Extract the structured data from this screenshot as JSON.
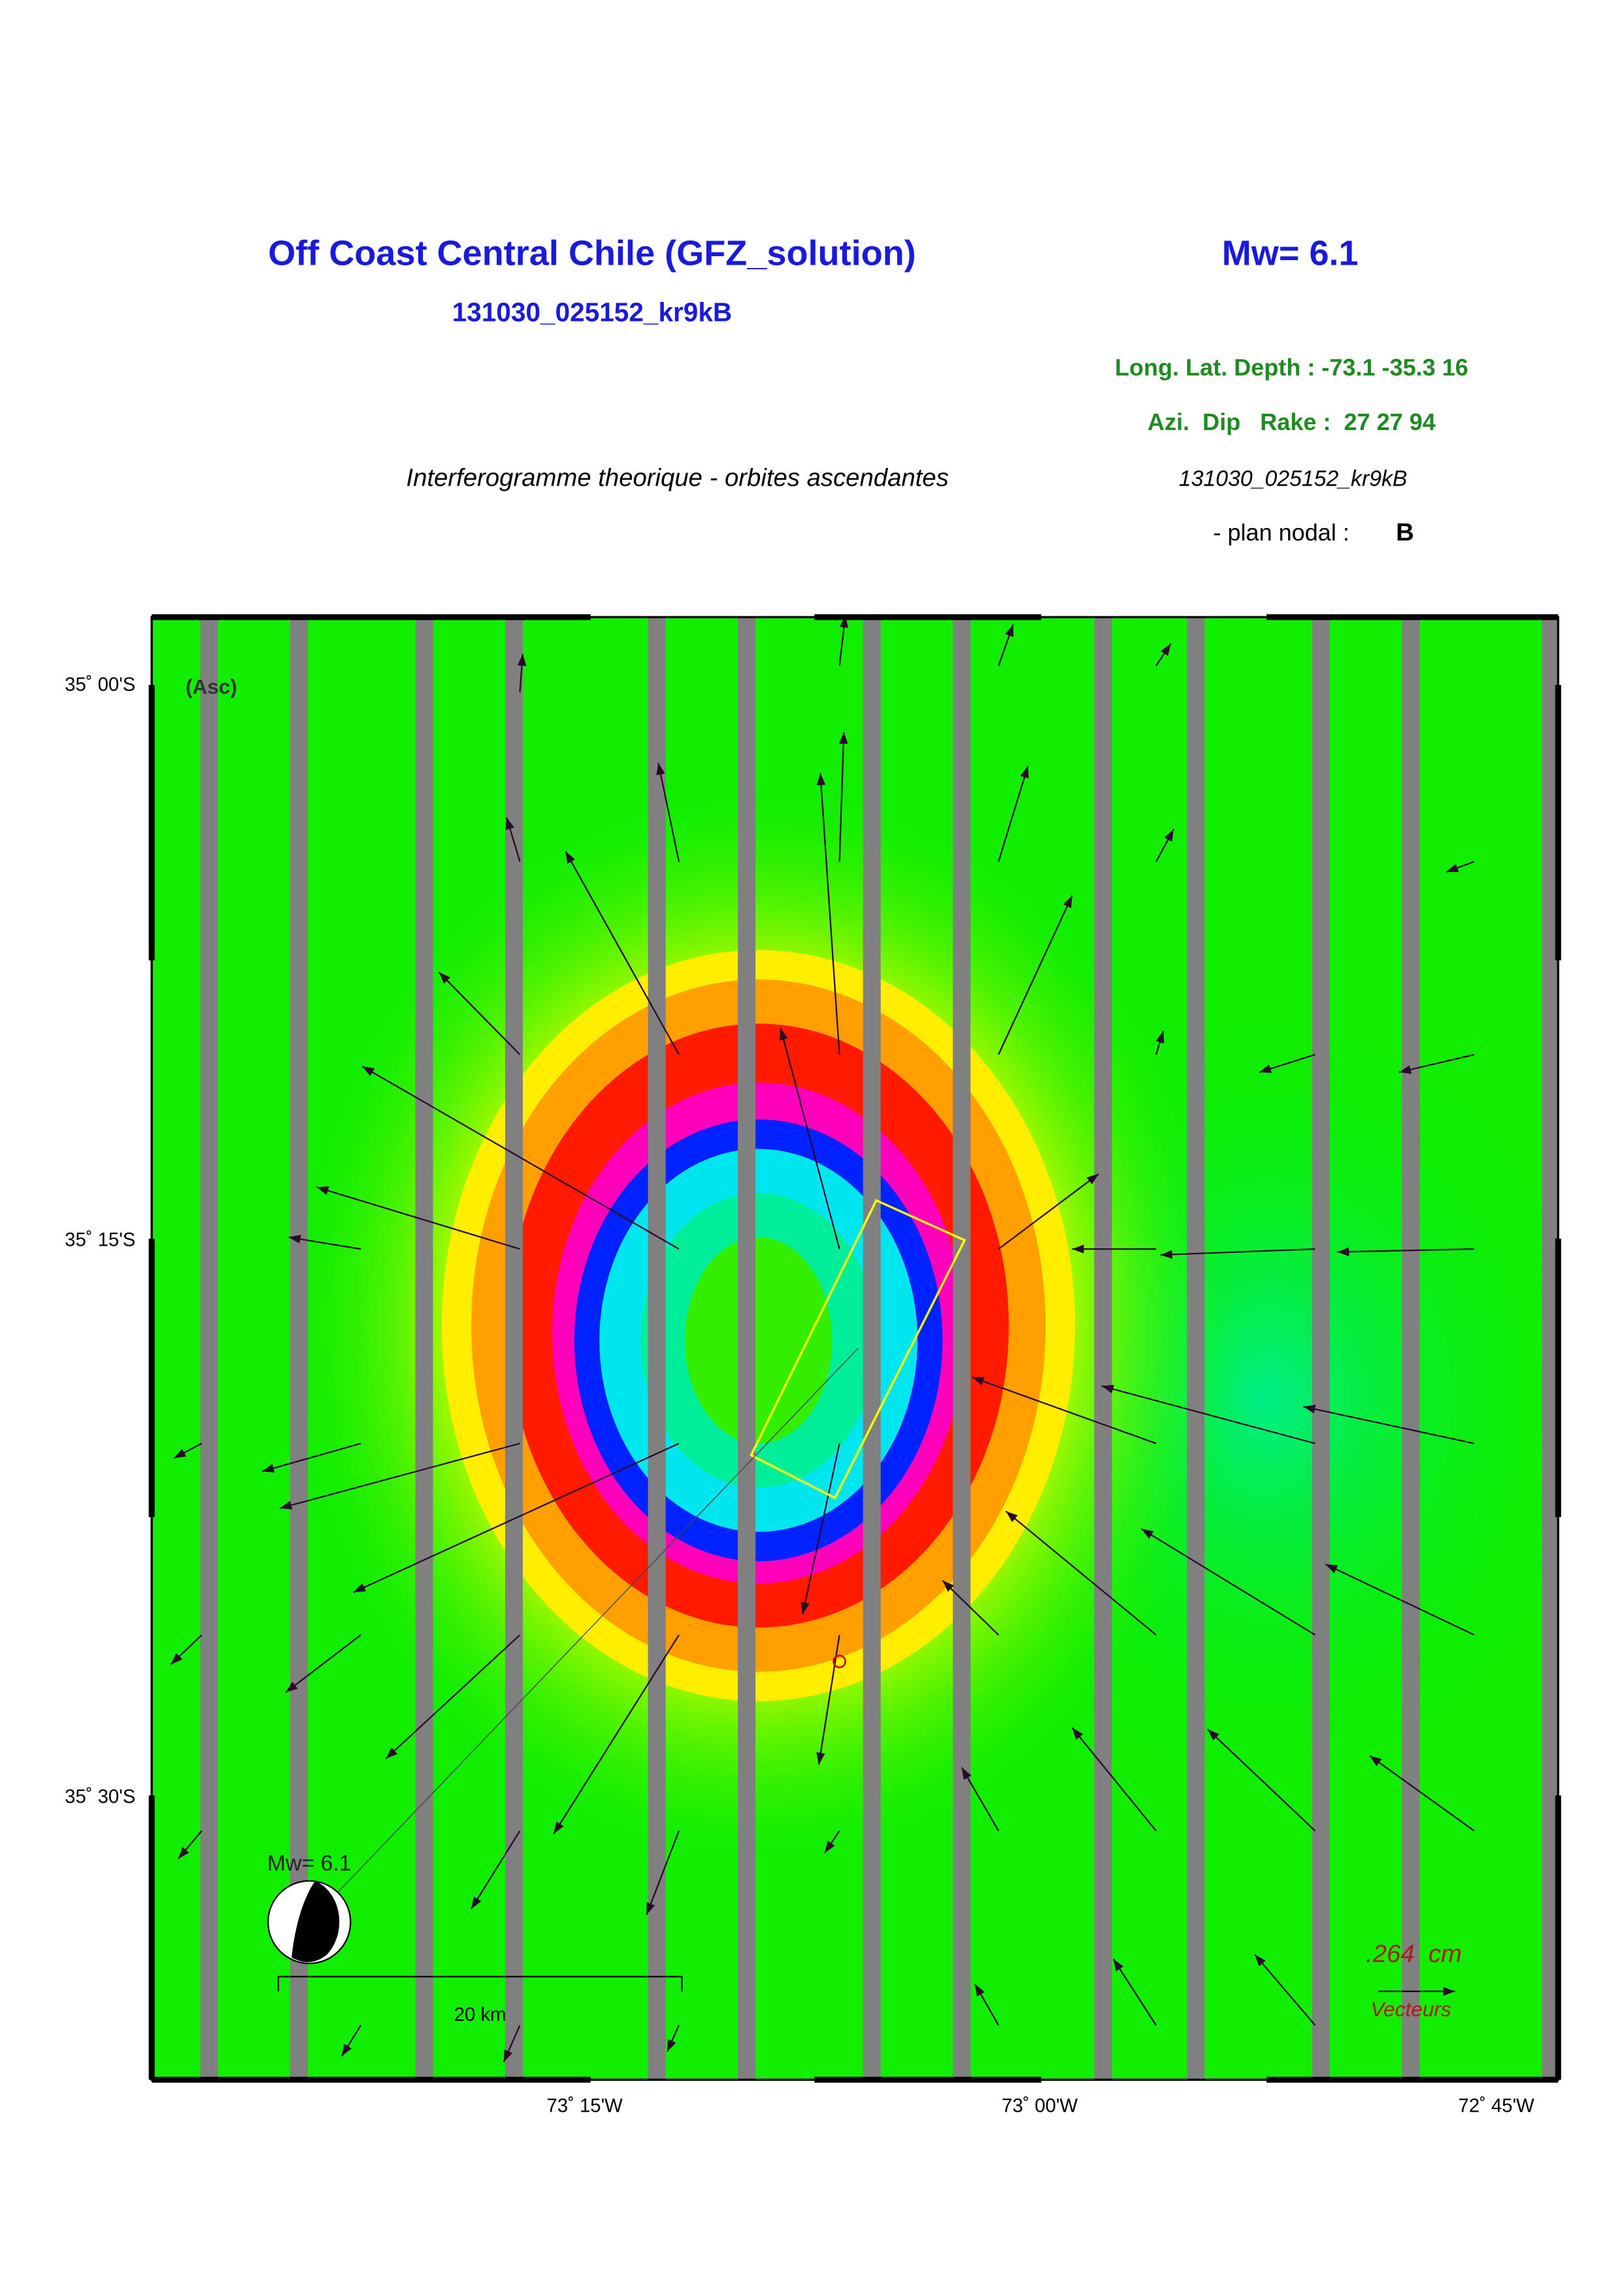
{
  "header": {
    "title": "Off Coast Central Chile (GFZ_solution)",
    "event_id": "131030_025152_kr9kB",
    "magnitude": "Mw= 6.1",
    "location": "Long. Lat. Depth : -73.1 -35.3 16",
    "mechanism": "Azi.  Dip   Rake :  27 27 94",
    "subtitle": "Interferogramme theorique - orbites ascendantes",
    "event_id_italic": "131030_025152_kr9kB",
    "nodal_plane_label": "- plan nodal :",
    "nodal_plane": "B"
  },
  "map": {
    "orbit": "(Asc)",
    "lat_labels": [
      "35˚ 00'S",
      "35˚ 15'S",
      "35˚ 30'S"
    ],
    "lon_labels": [
      "73˚ 15'W",
      "73˚ 00'W",
      "72˚ 45'W"
    ],
    "inset_magnitude": "Mw= 6.1",
    "scale_label": "20 km",
    "vector_scale": ".264  cm",
    "vector_label": "Vecteurs"
  }
}
